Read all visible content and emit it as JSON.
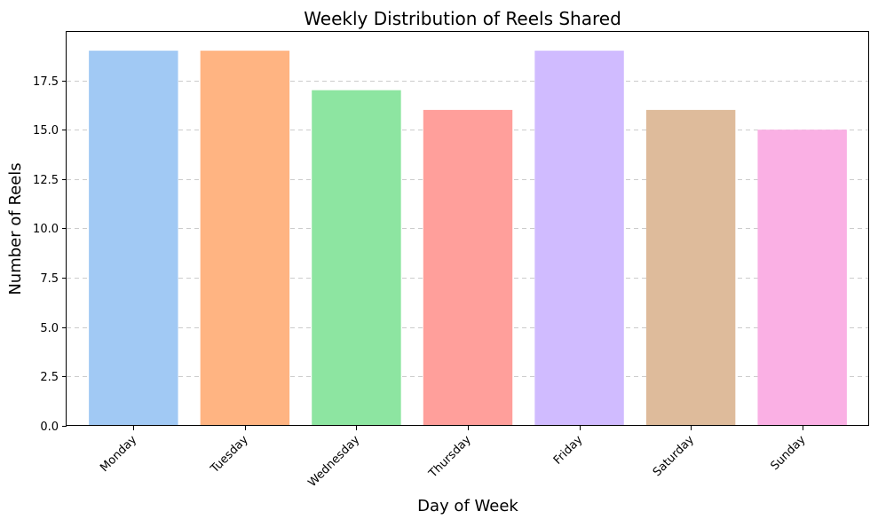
{
  "chart_data": {
    "type": "bar",
    "title": "Weekly Distribution of Reels Shared",
    "xlabel": "Day of Week",
    "ylabel": "Number of Reels",
    "categories": [
      "Monday",
      "Tuesday",
      "Wednesday",
      "Thursday",
      "Friday",
      "Saturday",
      "Sunday"
    ],
    "values": [
      19,
      19,
      17,
      16,
      19,
      16,
      15
    ],
    "colors": [
      "#a1c9f4",
      "#ffb482",
      "#8de5a1",
      "#ff9f9b",
      "#d0bbff",
      "#debb9b",
      "#fab0e4"
    ],
    "ylim": [
      0,
      19.95
    ],
    "yticks": [
      0.0,
      2.5,
      5.0,
      7.5,
      10.0,
      12.5,
      15.0,
      17.5
    ],
    "ytick_labels": [
      "0.0",
      "2.5",
      "5.0",
      "7.5",
      "10.0",
      "12.5",
      "15.0",
      "17.5"
    ],
    "grid": "y-dashed",
    "x_tick_rotation": 45
  }
}
